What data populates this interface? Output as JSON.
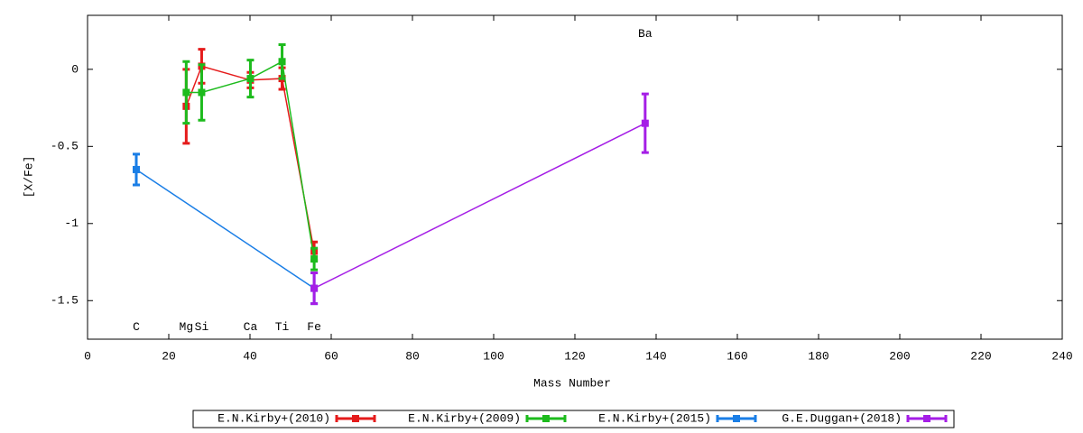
{
  "chart_data": {
    "type": "errorbar-line",
    "xlabel": "Mass Number",
    "ylabel": "[X/Fe]",
    "xlim": [
      0,
      240
    ],
    "ylim": [
      -1.75,
      0.35
    ],
    "xticks": [
      0,
      20,
      40,
      60,
      80,
      100,
      120,
      140,
      160,
      180,
      200,
      220,
      240
    ],
    "yticks": [
      0,
      -0.5,
      -1,
      -1.5
    ],
    "legend": "bottom",
    "annotations": [
      {
        "text": "C",
        "x": 12.0,
        "y": -1.67
      },
      {
        "text": "Mg",
        "x": 24.3,
        "y": -1.67
      },
      {
        "text": "Si",
        "x": 28.1,
        "y": -1.67
      },
      {
        "text": "Ca",
        "x": 40.1,
        "y": -1.67
      },
      {
        "text": "Ti",
        "x": 47.9,
        "y": -1.67
      },
      {
        "text": "Fe",
        "x": 55.8,
        "y": -1.67
      },
      {
        "text": "Ba",
        "x": 137.3,
        "y": 0.23
      }
    ],
    "series": [
      {
        "name": "E.N.Kirby+(2010)",
        "color": "#e51b1b",
        "x": [
          24.3,
          28.1,
          40.1,
          47.9,
          55.8
        ],
        "values": [
          -0.24,
          0.02,
          -0.07,
          -0.06,
          -1.18
        ],
        "errors": [
          0.24,
          0.11,
          0.05,
          0.07,
          0.06
        ]
      },
      {
        "name": "E.N.Kirby+(2009)",
        "color": "#1dbb1d",
        "x": [
          24.3,
          28.1,
          40.1,
          47.9,
          55.8
        ],
        "values": [
          -0.15,
          -0.15,
          -0.06,
          0.05,
          -1.23
        ],
        "errors": [
          0.2,
          0.18,
          0.12,
          0.11,
          0.07
        ]
      },
      {
        "name": "E.N.Kirby+(2015)",
        "color": "#1a7ee6",
        "x": [
          12.0,
          55.8
        ],
        "values": [
          -0.65,
          -1.42
        ],
        "errors": [
          0.1,
          0.1
        ]
      },
      {
        "name": "G.E.Duggan+(2018)",
        "color": "#a51ee6",
        "x": [
          55.8,
          137.3
        ],
        "values": [
          -1.42,
          -0.35
        ],
        "errors": [
          0.1,
          0.19
        ]
      }
    ]
  }
}
